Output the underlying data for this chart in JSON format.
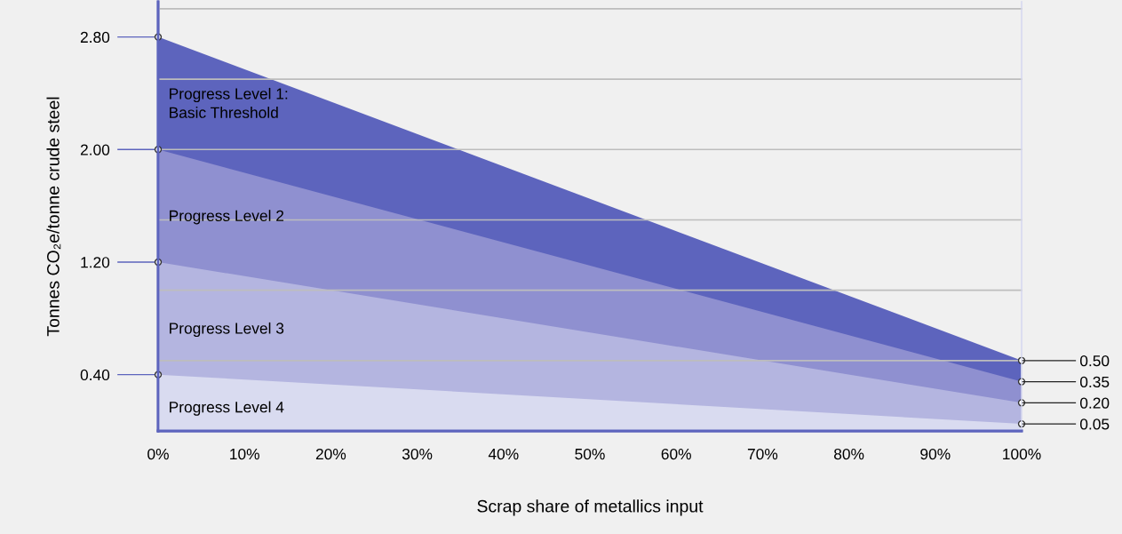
{
  "chart_data": {
    "type": "area",
    "xlabel": "Scrap share of metallics input",
    "ylabel": "Tonnes CO₂e/tonne crude steel",
    "x": [
      0,
      100
    ],
    "series": [
      {
        "name": "Progress Level 1:\nBasic Threshold",
        "color": "#5d64bd",
        "values": [
          2.8,
          0.5
        ]
      },
      {
        "name": "Progress Level 2",
        "color": "#8f90d0",
        "values": [
          2.0,
          0.35
        ]
      },
      {
        "name": "Progress Level 3",
        "color": "#b4b5e0",
        "values": [
          1.2,
          0.2
        ]
      },
      {
        "name": "Progress Level 4",
        "color": "#d9dbf0",
        "values": [
          0.4,
          0.05
        ]
      }
    ],
    "xlim": [
      0,
      100
    ],
    "xticks": [
      {
        "value": 0,
        "label": "0%"
      },
      {
        "value": 10,
        "label": "10%"
      },
      {
        "value": 20,
        "label": "20%"
      },
      {
        "value": 30,
        "label": "30%"
      },
      {
        "value": 40,
        "label": "40%"
      },
      {
        "value": 50,
        "label": "50%"
      },
      {
        "value": 60,
        "label": "60%"
      },
      {
        "value": 70,
        "label": "70%"
      },
      {
        "value": 80,
        "label": "80%"
      },
      {
        "value": 90,
        "label": "90%"
      },
      {
        "value": 100,
        "label": "100%"
      }
    ],
    "ylim": [
      0,
      3.05
    ],
    "yticks": [
      {
        "value": 0.4,
        "label": "0.40"
      },
      {
        "value": 1.2,
        "label": "1.20"
      },
      {
        "value": 2.0,
        "label": "2.00"
      },
      {
        "value": 2.8,
        "label": "2.80"
      }
    ],
    "y2lim": [
      0,
      3.05
    ],
    "y2ticks": [
      {
        "value": 0.05,
        "label": "0.05"
      },
      {
        "value": 0.2,
        "label": "0.20"
      },
      {
        "value": 0.35,
        "label": "0.35"
      },
      {
        "value": 0.5,
        "label": "0.50"
      }
    ],
    "ref_lines": [
      {
        "axis": "y",
        "value": 0.5,
        "color": "#bdbdbd"
      },
      {
        "axis": "y",
        "value": 1.0,
        "color": "#bdbdbd"
      },
      {
        "axis": "y",
        "value": 1.5,
        "color": "#bdbdbd"
      },
      {
        "axis": "y",
        "value": 2.0,
        "color": "#bdbdbd"
      },
      {
        "axis": "y",
        "value": 2.5,
        "color": "#bdbdbd"
      },
      {
        "axis": "y",
        "value": 3.0,
        "color": "#bdbdbd"
      }
    ],
    "marker": "circle",
    "legend": false
  }
}
